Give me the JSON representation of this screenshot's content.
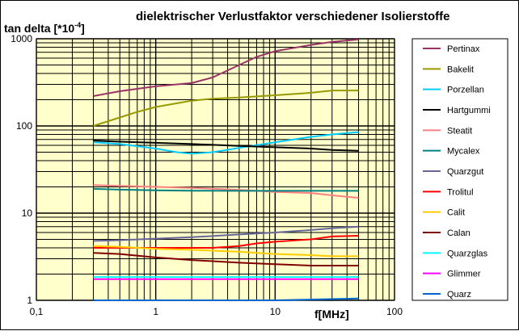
{
  "chart_data": {
    "type": "line",
    "title": "dielektrischer Verlustfaktor verschiedener Isolierstoffe",
    "ylabel_base": "tan delta [*10",
    "ylabel_exp": "-4",
    "ylabel_end": "]",
    "xlabel": "f[MHz]",
    "x_scale": "log",
    "y_scale": "log",
    "xlim": [
      0.1,
      100
    ],
    "ylim": [
      1,
      1000
    ],
    "x_ticks": [
      0.1,
      1,
      10,
      100
    ],
    "x_tick_labels": [
      "0,1",
      "1",
      "10",
      "100"
    ],
    "y_ticks": [
      1,
      10,
      100,
      1000
    ],
    "y_tick_labels": [
      "1",
      "10",
      "100",
      "1000"
    ],
    "grid": true,
    "legend_position": "right",
    "plot_background": "#ffffcc",
    "series": [
      {
        "name": "Pertinax",
        "color": "#993366",
        "x": [
          0.3,
          0.5,
          1,
          2,
          3,
          5,
          7,
          10,
          20,
          30,
          50
        ],
        "y": [
          220,
          250,
          285,
          310,
          360,
          500,
          620,
          720,
          850,
          920,
          980
        ]
      },
      {
        "name": "Bakelit",
        "color": "#999900",
        "x": [
          0.3,
          0.5,
          0.7,
          1,
          2,
          3,
          5,
          10,
          20,
          30,
          50
        ],
        "y": [
          100,
          125,
          145,
          165,
          195,
          205,
          212,
          225,
          240,
          255,
          255
        ]
      },
      {
        "name": "Porzellan",
        "color": "#00ccff",
        "x": [
          0.3,
          0.5,
          1,
          1.5,
          2,
          3,
          5,
          10,
          20,
          30,
          50
        ],
        "y": [
          65,
          62,
          55,
          50,
          48,
          50,
          56,
          65,
          75,
          80,
          85
        ]
      },
      {
        "name": "Hartgummi",
        "color": "#000000",
        "x": [
          0.3,
          0.5,
          1,
          2,
          5,
          10,
          20,
          30,
          50
        ],
        "y": [
          68,
          66,
          64,
          62,
          59,
          57,
          55,
          53,
          52
        ]
      },
      {
        "name": "Steatit",
        "color": "#ff8080",
        "x": [
          0.3,
          0.5,
          1,
          2,
          5,
          10,
          20,
          30,
          50
        ],
        "y": [
          21,
          20.5,
          20,
          19.5,
          18.5,
          17.5,
          17,
          16,
          15
        ]
      },
      {
        "name": "Mycalex",
        "color": "#008080",
        "x": [
          0.3,
          0.5,
          1,
          2,
          5,
          10,
          20,
          50
        ],
        "y": [
          19,
          18.6,
          18.3,
          18.1,
          18.0,
          18.0,
          18.0,
          18.0
        ]
      },
      {
        "name": "Quarzgut",
        "color": "#666699",
        "x": [
          0.3,
          0.5,
          1,
          2,
          5,
          10,
          20,
          30,
          50
        ],
        "y": [
          4.8,
          4.9,
          5.1,
          5.3,
          5.7,
          6.0,
          6.4,
          6.7,
          7.0
        ]
      },
      {
        "name": "Trolitul",
        "color": "#ff0000",
        "x": [
          0.3,
          0.5,
          1,
          2,
          3,
          5,
          7,
          10,
          20,
          30,
          50
        ],
        "y": [
          4.0,
          4.0,
          4.0,
          4.0,
          4.0,
          4.2,
          4.5,
          4.7,
          5.0,
          5.4,
          5.5
        ]
      },
      {
        "name": "Calit",
        "color": "#ffcc00",
        "x": [
          0.3,
          0.5,
          1,
          2,
          5,
          10,
          20,
          30,
          50
        ],
        "y": [
          4.2,
          4.1,
          3.9,
          3.8,
          3.6,
          3.4,
          3.3,
          3.2,
          3.2
        ]
      },
      {
        "name": "Calan",
        "color": "#800000",
        "x": [
          0.3,
          0.5,
          1,
          2,
          5,
          10,
          20,
          30,
          50
        ],
        "y": [
          3.5,
          3.4,
          3.1,
          2.9,
          2.7,
          2.6,
          2.5,
          2.5,
          2.5
        ]
      },
      {
        "name": "Quarzglas",
        "color": "#00ffff",
        "x": [
          0.3,
          1,
          10,
          50
        ],
        "y": [
          1.85,
          1.85,
          1.85,
          1.85
        ]
      },
      {
        "name": "Glimmer",
        "color": "#ff00ff",
        "x": [
          0.3,
          1,
          10,
          50
        ],
        "y": [
          1.75,
          1.75,
          1.75,
          1.75
        ]
      },
      {
        "name": "Quarz",
        "color": "#0066cc",
        "x": [
          0.3,
          1,
          10,
          50
        ],
        "y": [
          1.0,
          1.0,
          1.0,
          1.05
        ]
      }
    ]
  }
}
